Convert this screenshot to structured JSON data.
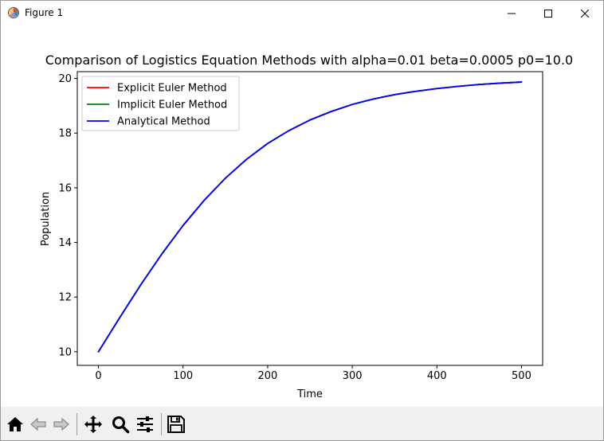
{
  "window": {
    "title": "Figure 1",
    "icons": [
      "app-icon",
      "minimize-icon",
      "maximize-icon",
      "close-icon"
    ]
  },
  "toolbar": {
    "icons": [
      "home-icon",
      "back-icon",
      "forward-icon",
      "pan-icon",
      "zoom-icon",
      "configure-subplots-icon",
      "save-icon"
    ]
  },
  "chart_data": {
    "type": "line",
    "title": "Comparison of Logistics Equation Methods with alpha=0.01 beta=0.0005 p0=10.0",
    "xlabel": "Time",
    "ylabel": "Population",
    "xlim": [
      -25,
      525
    ],
    "ylim": [
      9.5,
      20.25
    ],
    "xticks": [
      0,
      100,
      200,
      300,
      400,
      500
    ],
    "yticks": [
      10,
      12,
      14,
      16,
      18,
      20
    ],
    "grid": false,
    "legend_position": "upper left",
    "series": [
      {
        "name": "Explicit Euler Method",
        "color": "#ff0000",
        "x": [
          0,
          25,
          50,
          75,
          100,
          125,
          150,
          175,
          200,
          225,
          250,
          275,
          300,
          325,
          350,
          375,
          400,
          425,
          450,
          475,
          500
        ],
        "y": [
          10.0,
          11.24,
          12.45,
          13.58,
          14.62,
          15.54,
          16.35,
          17.04,
          17.62,
          18.09,
          18.48,
          18.79,
          19.05,
          19.25,
          19.41,
          19.53,
          19.63,
          19.71,
          19.78,
          19.83,
          19.87
        ]
      },
      {
        "name": "Implicit Euler Method",
        "color": "#008000",
        "x": [
          0,
          25,
          50,
          75,
          100,
          125,
          150,
          175,
          200,
          225,
          250,
          275,
          300,
          325,
          350,
          375,
          400,
          425,
          450,
          475,
          500
        ],
        "y": [
          10.0,
          11.24,
          12.45,
          13.58,
          14.62,
          15.54,
          16.35,
          17.04,
          17.62,
          18.09,
          18.48,
          18.79,
          19.05,
          19.25,
          19.41,
          19.53,
          19.63,
          19.71,
          19.78,
          19.83,
          19.87
        ]
      },
      {
        "name": "Analytical Method",
        "color": "#0000ff",
        "x": [
          0,
          25,
          50,
          75,
          100,
          125,
          150,
          175,
          200,
          225,
          250,
          275,
          300,
          325,
          350,
          375,
          400,
          425,
          450,
          475,
          500
        ],
        "y": [
          10.0,
          11.24,
          12.45,
          13.58,
          14.62,
          15.54,
          16.35,
          17.04,
          17.62,
          18.09,
          18.48,
          18.79,
          19.05,
          19.25,
          19.41,
          19.53,
          19.63,
          19.71,
          19.78,
          19.83,
          19.87
        ]
      }
    ]
  }
}
